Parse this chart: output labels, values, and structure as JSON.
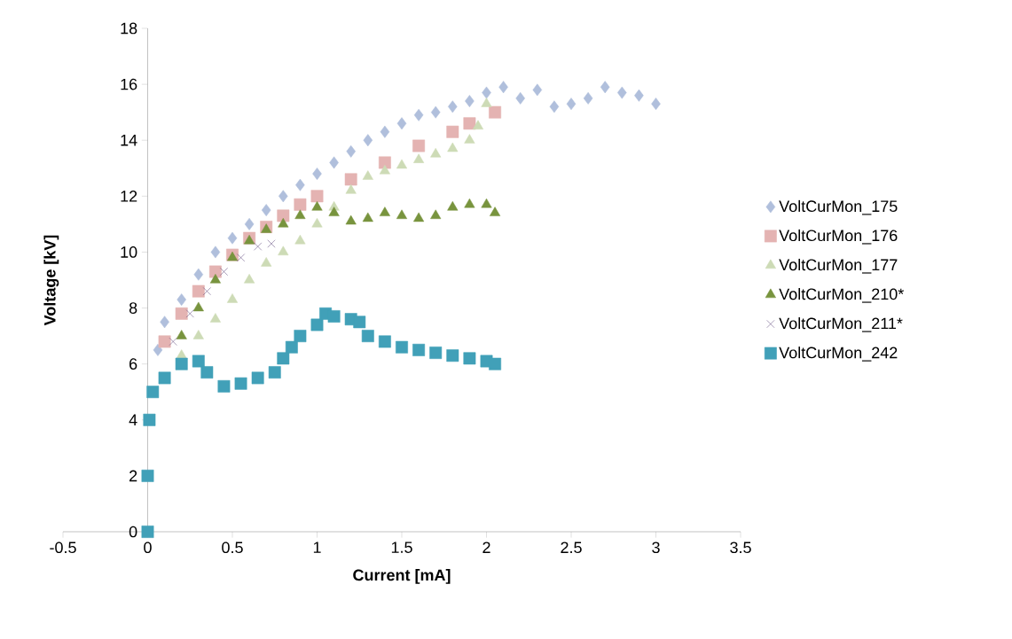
{
  "chart_data": {
    "type": "scatter",
    "xlabel": "Current [mA]",
    "ylabel": "Voltage [kV]",
    "xlim": [
      -0.5,
      3.5
    ],
    "ylim": [
      0,
      18
    ],
    "xticks": [
      -0.5,
      0,
      0.5,
      1,
      1.5,
      2,
      2.5,
      3,
      3.5
    ],
    "yticks": [
      0,
      2,
      4,
      6,
      8,
      10,
      12,
      14,
      16,
      18
    ],
    "legend": "right",
    "series": [
      {
        "name": "VoltCurMon_175",
        "color": "#b0bfdc",
        "marker": "diamond",
        "x": [
          0.06,
          0.1,
          0.2,
          0.3,
          0.4,
          0.5,
          0.6,
          0.7,
          0.8,
          0.9,
          1.0,
          1.1,
          1.2,
          1.3,
          1.4,
          1.5,
          1.6,
          1.7,
          1.8,
          1.9,
          2.0,
          2.1,
          2.2,
          2.3,
          2.4,
          2.5,
          2.6,
          2.7,
          2.8,
          2.9,
          3.0
        ],
        "values": [
          6.5,
          7.5,
          8.3,
          9.2,
          10,
          10.5,
          11,
          11.5,
          12,
          12.4,
          12.8,
          13.2,
          13.6,
          14,
          14.3,
          14.6,
          14.9,
          15,
          15.2,
          15.4,
          15.7,
          15.9,
          15.5,
          15.8,
          15.2,
          15.3,
          15.5,
          15.9,
          15.7,
          15.6,
          15.3
        ]
      },
      {
        "name": "VoltCurMon_176",
        "color": "#e4b3b2",
        "marker": "square",
        "x": [
          0.1,
          0.2,
          0.3,
          0.4,
          0.5,
          0.6,
          0.7,
          0.8,
          0.9,
          1.0,
          1.2,
          1.4,
          1.6,
          1.8,
          1.9,
          2.05
        ],
        "values": [
          6.8,
          7.8,
          8.6,
          9.3,
          9.9,
          10.5,
          10.9,
          11.3,
          11.7,
          12,
          12.6,
          13.2,
          13.8,
          14.3,
          14.6,
          15
        ]
      },
      {
        "name": "VoltCurMon_177",
        "color": "#cddbb6",
        "marker": "triangle",
        "x": [
          0.2,
          0.3,
          0.4,
          0.5,
          0.6,
          0.7,
          0.8,
          0.9,
          1.0,
          1.1,
          1.2,
          1.3,
          1.4,
          1.5,
          1.6,
          1.7,
          1.8,
          1.9,
          1.95,
          2.0
        ],
        "values": [
          6.3,
          7,
          7.6,
          8.3,
          9,
          9.6,
          10,
          10.4,
          11,
          11.6,
          12.2,
          12.7,
          12.9,
          13.1,
          13.3,
          13.5,
          13.7,
          14,
          14.5,
          15.3
        ]
      },
      {
        "name": "VoltCurMon_210*",
        "color": "#78943e",
        "marker": "triangle",
        "x": [
          0.2,
          0.3,
          0.4,
          0.5,
          0.6,
          0.7,
          0.8,
          0.9,
          1.0,
          1.1,
          1.2,
          1.3,
          1.4,
          1.5,
          1.6,
          1.7,
          1.8,
          1.9,
          2.0,
          2.05
        ],
        "values": [
          7,
          8,
          9,
          9.8,
          10.4,
          10.8,
          11,
          11.3,
          11.6,
          11.4,
          11.1,
          11.2,
          11.4,
          11.3,
          11.2,
          11.3,
          11.6,
          11.7,
          11.7,
          11.4
        ]
      },
      {
        "name": "VoltCurMon_211*",
        "color": "#614a7d",
        "marker": "cross",
        "x": [
          0.15,
          0.25,
          0.35,
          0.45,
          0.55,
          0.65,
          0.73
        ],
        "values": [
          6.8,
          7.8,
          8.6,
          9.3,
          9.8,
          10.2,
          10.3
        ]
      },
      {
        "name": "VoltCurMon_242",
        "color": "#41a0b8",
        "marker": "square",
        "x": [
          0,
          0,
          0.01,
          0.03,
          0.1,
          0.2,
          0.3,
          0.35,
          0.45,
          0.55,
          0.65,
          0.75,
          0.8,
          0.85,
          0.9,
          1.0,
          1.05,
          1.1,
          1.2,
          1.25,
          1.3,
          1.4,
          1.5,
          1.6,
          1.7,
          1.8,
          1.9,
          2.0,
          2.05
        ],
        "values": [
          0,
          2,
          4,
          5,
          5.5,
          6,
          6.1,
          5.7,
          5.2,
          5.3,
          5.5,
          5.7,
          6.2,
          6.6,
          7,
          7.4,
          7.8,
          7.7,
          7.6,
          7.5,
          7,
          6.8,
          6.6,
          6.5,
          6.4,
          6.3,
          6.2,
          6.1,
          6.0
        ]
      }
    ]
  }
}
